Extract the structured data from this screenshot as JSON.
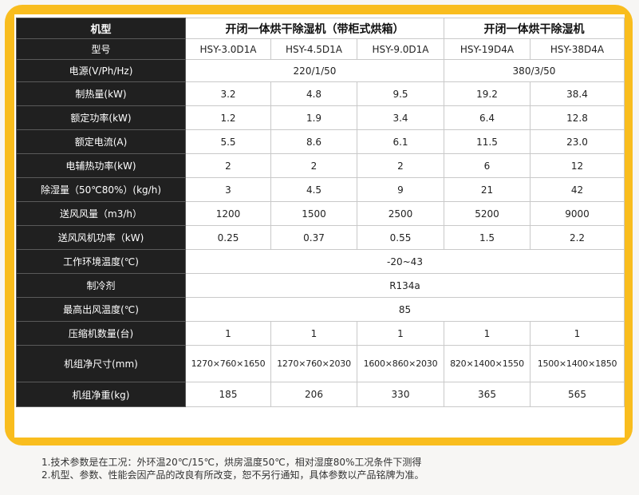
{
  "table": {
    "header": {
      "label": "机型",
      "group1": "开闭一体烘干除湿机（带柜式烘箱）",
      "group2": "开闭一体烘干除湿机"
    },
    "models": {
      "label": "型号",
      "values": [
        "HSY-3.0D1A",
        "HSY-4.5D1A",
        "HSY-9.0D1A",
        "HSY-19D4A",
        "HSY-38D4A"
      ]
    },
    "power_supply": {
      "label": "电源(V/Ph/Hz)",
      "group1": "220/1/50",
      "group2": "380/3/50"
    },
    "rows": [
      {
        "label": "制热量(kW)",
        "values": [
          "3.2",
          "4.8",
          "9.5",
          "19.2",
          "38.4"
        ]
      },
      {
        "label": "额定功率(kW)",
        "values": [
          "1.2",
          "1.9",
          "3.4",
          "6.4",
          "12.8"
        ]
      },
      {
        "label": "额定电流(A)",
        "values": [
          "5.5",
          "8.6",
          "6.1",
          "11.5",
          "23.0"
        ]
      },
      {
        "label": "电辅热功率(kW)",
        "values": [
          "2",
          "2",
          "2",
          "6",
          "12"
        ]
      },
      {
        "label": "除湿量（50℃80%）(kg/h)",
        "values": [
          "3",
          "4.5",
          "9",
          "21",
          "42"
        ]
      },
      {
        "label": "送风风量（m3/h）",
        "values": [
          "1200",
          "1500",
          "2500",
          "5200",
          "9000"
        ]
      },
      {
        "label": "送风风机功率（kW)",
        "values": [
          "0.25",
          "0.37",
          "0.55",
          "1.5",
          "2.2"
        ]
      }
    ],
    "merged_rows": [
      {
        "label": "工作环境温度(℃)",
        "value": "-20~43"
      },
      {
        "label": "制冷剂",
        "value": "R134a"
      },
      {
        "label": "最高出风温度(℃)",
        "value": "85"
      }
    ],
    "compressor": {
      "label": "压缩机数量(台)",
      "values": [
        "1",
        "1",
        "1",
        "1",
        "1"
      ]
    },
    "dimensions": {
      "label": "机组净尺寸(mm)",
      "values": [
        "1270×760×1650",
        "1270×760×2030",
        "1600×860×2030",
        "820×1400×1550",
        "1500×1400×1850"
      ]
    },
    "weight": {
      "label": "机组净重(kg)",
      "values": [
        "185",
        "206",
        "330",
        "365",
        "565"
      ]
    }
  },
  "notes": [
    "1.技术参数是在工况：外环温20℃/15℃，烘房温度50℃，相对湿度80%工况条件下测得",
    "2.机型、参数、性能会因产品的改良有所改变，恕不另行通知，具体参数以产品铭牌为准。"
  ],
  "colors": {
    "frame": "#f9bd1e",
    "label_bg": "#202020"
  }
}
